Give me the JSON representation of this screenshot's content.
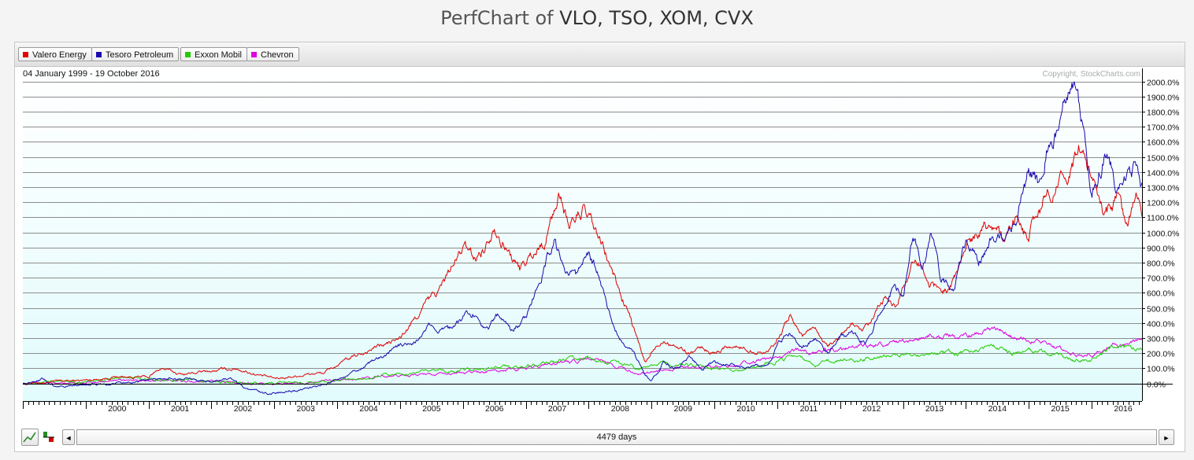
{
  "page": {
    "title_prefix": "PerfChart of",
    "title_tickers": "VLO, TSO, XOM, CVX"
  },
  "controls": {
    "days_label": "4479 days",
    "left_arrow": "◄",
    "right_arrow": "►"
  },
  "chart_data": {
    "type": "line",
    "date_range": "04 January 1999 - 19 October 2016",
    "copyright": "Copyright, StockCharts.com",
    "x_range": [
      1999.0,
      2016.8
    ],
    "ylim": [
      -100,
      2050
    ],
    "y_ticks": [
      0,
      100,
      200,
      300,
      400,
      500,
      600,
      700,
      800,
      900,
      1000,
      1100,
      1200,
      1300,
      1400,
      1500,
      1600,
      1700,
      1800,
      1900,
      2000
    ],
    "y_tick_labels": [
      "0.0%",
      "100.0%",
      "200.0%",
      "300.0%",
      "400.0%",
      "500.0%",
      "600.0%",
      "700.0%",
      "800.0%",
      "900.0%",
      "1000.0%",
      "1100.0%",
      "1200.0%",
      "1300.0%",
      "1400.0%",
      "1500.0%",
      "1600.0%",
      "1700.0%",
      "1800.0%",
      "1900.0%",
      "2000.0%"
    ],
    "x_ticks": [
      2000,
      2001,
      2002,
      2003,
      2004,
      2005,
      2006,
      2007,
      2008,
      2009,
      2010,
      2011,
      2012,
      2013,
      2014,
      2015,
      2016
    ],
    "x_tick_labels": [
      "2000",
      "2001",
      "2002",
      "2003",
      "2004",
      "2005",
      "2006",
      "2007",
      "2008",
      "2009",
      "2010",
      "2011",
      "2012",
      "2013",
      "2014",
      "2015",
      "2016"
    ],
    "grid": true,
    "legend_placement": "top-left",
    "series": [
      {
        "name": "Valero Energy",
        "color": "#e00000",
        "points": [
          [
            1999.0,
            0
          ],
          [
            1999.5,
            10
          ],
          [
            2000.0,
            20
          ],
          [
            2000.5,
            45
          ],
          [
            2001.0,
            40
          ],
          [
            2001.2,
            100
          ],
          [
            2001.5,
            60
          ],
          [
            2002.0,
            80
          ],
          [
            2002.4,
            100
          ],
          [
            2002.8,
            50
          ],
          [
            2003.0,
            30
          ],
          [
            2003.5,
            60
          ],
          [
            2003.8,
            70
          ],
          [
            2004.0,
            120
          ],
          [
            2004.3,
            180
          ],
          [
            2004.6,
            240
          ],
          [
            2004.8,
            260
          ],
          [
            2005.0,
            300
          ],
          [
            2005.2,
            400
          ],
          [
            2005.4,
            520
          ],
          [
            2005.6,
            600
          ],
          [
            2005.8,
            750
          ],
          [
            2006.0,
            900
          ],
          [
            2006.2,
            820
          ],
          [
            2006.4,
            950
          ],
          [
            2006.5,
            1080
          ],
          [
            2006.7,
            900
          ],
          [
            2006.9,
            750
          ],
          [
            2007.1,
            850
          ],
          [
            2007.3,
            950
          ],
          [
            2007.45,
            1150
          ],
          [
            2007.55,
            1250
          ],
          [
            2007.7,
            1050
          ],
          [
            2007.9,
            1150
          ],
          [
            2008.1,
            1000
          ],
          [
            2008.3,
            820
          ],
          [
            2008.5,
            600
          ],
          [
            2008.65,
            450
          ],
          [
            2008.8,
            250
          ],
          [
            2008.9,
            130
          ],
          [
            2009.0,
            200
          ],
          [
            2009.2,
            300
          ],
          [
            2009.4,
            250
          ],
          [
            2009.6,
            200
          ],
          [
            2009.8,
            230
          ],
          [
            2010.0,
            200
          ],
          [
            2010.2,
            250
          ],
          [
            2010.5,
            230
          ],
          [
            2010.8,
            200
          ],
          [
            2011.0,
            300
          ],
          [
            2011.2,
            440
          ],
          [
            2011.4,
            320
          ],
          [
            2011.6,
            380
          ],
          [
            2011.8,
            250
          ],
          [
            2012.0,
            300
          ],
          [
            2012.2,
            400
          ],
          [
            2012.35,
            320
          ],
          [
            2012.5,
            400
          ],
          [
            2012.7,
            550
          ],
          [
            2012.9,
            500
          ],
          [
            2013.0,
            650
          ],
          [
            2013.2,
            850
          ],
          [
            2013.4,
            700
          ],
          [
            2013.6,
            600
          ],
          [
            2013.8,
            680
          ],
          [
            2014.0,
            900
          ],
          [
            2014.3,
            1100
          ],
          [
            2014.5,
            1050
          ],
          [
            2014.6,
            900
          ],
          [
            2014.8,
            1100
          ],
          [
            2015.0,
            950
          ],
          [
            2015.1,
            1100
          ],
          [
            2015.3,
            1250
          ],
          [
            2015.5,
            1350
          ],
          [
            2015.6,
            1250
          ],
          [
            2015.8,
            1550
          ],
          [
            2016.0,
            1400
          ],
          [
            2016.2,
            1100
          ],
          [
            2016.4,
            1200
          ],
          [
            2016.55,
            1000
          ],
          [
            2016.7,
            1200
          ],
          [
            2016.8,
            1150
          ]
        ]
      },
      {
        "name": "Tesoro Petroleum",
        "color": "#1a0ab0",
        "points": [
          [
            1999.0,
            0
          ],
          [
            1999.3,
            30
          ],
          [
            1999.5,
            -20
          ],
          [
            1999.8,
            -10
          ],
          [
            2000.0,
            0
          ],
          [
            2000.3,
            -10
          ],
          [
            2000.7,
            10
          ],
          [
            2001.0,
            20
          ],
          [
            2001.3,
            40
          ],
          [
            2001.7,
            20
          ],
          [
            2002.0,
            10
          ],
          [
            2002.3,
            30
          ],
          [
            2002.5,
            -30
          ],
          [
            2002.8,
            -70
          ],
          [
            2003.0,
            -60
          ],
          [
            2003.3,
            -50
          ],
          [
            2003.7,
            -20
          ],
          [
            2004.0,
            20
          ],
          [
            2004.3,
            80
          ],
          [
            2004.6,
            150
          ],
          [
            2004.8,
            190
          ],
          [
            2005.0,
            250
          ],
          [
            2005.3,
            300
          ],
          [
            2005.5,
            400
          ],
          [
            2005.8,
            350
          ],
          [
            2006.0,
            420
          ],
          [
            2006.2,
            470
          ],
          [
            2006.4,
            380
          ],
          [
            2006.6,
            450
          ],
          [
            2006.75,
            350
          ],
          [
            2007.0,
            420
          ],
          [
            2007.2,
            650
          ],
          [
            2007.35,
            850
          ],
          [
            2007.45,
            950
          ],
          [
            2007.6,
            750
          ],
          [
            2007.8,
            700
          ],
          [
            2007.95,
            900
          ],
          [
            2008.1,
            780
          ],
          [
            2008.3,
            500
          ],
          [
            2008.5,
            300
          ],
          [
            2008.7,
            200
          ],
          [
            2008.9,
            50
          ],
          [
            2009.0,
            20
          ],
          [
            2009.2,
            150
          ],
          [
            2009.4,
            100
          ],
          [
            2009.6,
            180
          ],
          [
            2009.8,
            100
          ],
          [
            2010.0,
            150
          ],
          [
            2010.3,
            120
          ],
          [
            2010.6,
            100
          ],
          [
            2010.9,
            150
          ],
          [
            2011.0,
            250
          ],
          [
            2011.2,
            350
          ],
          [
            2011.4,
            250
          ],
          [
            2011.6,
            300
          ],
          [
            2011.8,
            200
          ],
          [
            2012.0,
            300
          ],
          [
            2012.2,
            350
          ],
          [
            2012.4,
            250
          ],
          [
            2012.6,
            450
          ],
          [
            2012.8,
            600
          ],
          [
            2013.0,
            600
          ],
          [
            2013.15,
            950
          ],
          [
            2013.3,
            800
          ],
          [
            2013.45,
            1000
          ],
          [
            2013.6,
            700
          ],
          [
            2013.8,
            600
          ],
          [
            2014.0,
            950
          ],
          [
            2014.2,
            780
          ],
          [
            2014.4,
            950
          ],
          [
            2014.6,
            950
          ],
          [
            2014.8,
            1100
          ],
          [
            2015.0,
            1400
          ],
          [
            2015.15,
            1300
          ],
          [
            2015.3,
            1600
          ],
          [
            2015.5,
            1700
          ],
          [
            2015.6,
            1900
          ],
          [
            2015.7,
            2000
          ],
          [
            2015.8,
            1800
          ],
          [
            2016.0,
            1300
          ],
          [
            2016.2,
            1550
          ],
          [
            2016.4,
            1300
          ],
          [
            2016.6,
            1350
          ],
          [
            2016.7,
            1450
          ],
          [
            2016.8,
            1350
          ]
        ]
      },
      {
        "name": "Exxon Mobil",
        "color": "#22cc00",
        "points": [
          [
            1999.0,
            0
          ],
          [
            1999.5,
            15
          ],
          [
            2000.0,
            10
          ],
          [
            2000.5,
            35
          ],
          [
            2001.0,
            30
          ],
          [
            2001.5,
            20
          ],
          [
            2002.0,
            15
          ],
          [
            2002.5,
            5
          ],
          [
            2003.0,
            0
          ],
          [
            2003.5,
            10
          ],
          [
            2004.0,
            20
          ],
          [
            2004.5,
            40
          ],
          [
            2005.0,
            60
          ],
          [
            2005.5,
            80
          ],
          [
            2006.0,
            90
          ],
          [
            2006.5,
            110
          ],
          [
            2007.0,
            120
          ],
          [
            2007.5,
            150
          ],
          [
            2008.0,
            160
          ],
          [
            2008.5,
            130
          ],
          [
            2008.8,
            100
          ],
          [
            2009.0,
            140
          ],
          [
            2009.5,
            120
          ],
          [
            2010.0,
            100
          ],
          [
            2010.3,
            80
          ],
          [
            2010.6,
            100
          ],
          [
            2011.0,
            150
          ],
          [
            2011.3,
            170
          ],
          [
            2011.6,
            130
          ],
          [
            2012.0,
            160
          ],
          [
            2012.5,
            170
          ],
          [
            2013.0,
            190
          ],
          [
            2013.5,
            200
          ],
          [
            2014.0,
            210
          ],
          [
            2014.4,
            240
          ],
          [
            2014.8,
            200
          ],
          [
            2015.0,
            210
          ],
          [
            2015.5,
            190
          ],
          [
            2015.8,
            150
          ],
          [
            2016.0,
            170
          ],
          [
            2016.3,
            230
          ],
          [
            2016.5,
            250
          ],
          [
            2016.8,
            220
          ]
        ]
      },
      {
        "name": "Chevron",
        "color": "#e000e0",
        "points": [
          [
            1999.0,
            0
          ],
          [
            1999.5,
            10
          ],
          [
            2000.0,
            5
          ],
          [
            2000.5,
            15
          ],
          [
            2001.0,
            20
          ],
          [
            2001.5,
            15
          ],
          [
            2002.0,
            10
          ],
          [
            2002.5,
            0
          ],
          [
            2003.0,
            -10
          ],
          [
            2003.5,
            0
          ],
          [
            2004.0,
            20
          ],
          [
            2004.5,
            35
          ],
          [
            2005.0,
            50
          ],
          [
            2005.5,
            60
          ],
          [
            2006.0,
            70
          ],
          [
            2006.5,
            80
          ],
          [
            2007.0,
            100
          ],
          [
            2007.5,
            130
          ],
          [
            2008.0,
            160
          ],
          [
            2008.5,
            110
          ],
          [
            2008.8,
            70
          ],
          [
            2009.0,
            80
          ],
          [
            2009.5,
            100
          ],
          [
            2010.0,
            110
          ],
          [
            2010.5,
            130
          ],
          [
            2011.0,
            180
          ],
          [
            2011.3,
            230
          ],
          [
            2011.6,
            200
          ],
          [
            2012.0,
            230
          ],
          [
            2012.5,
            260
          ],
          [
            2013.0,
            280
          ],
          [
            2013.5,
            320
          ],
          [
            2014.0,
            310
          ],
          [
            2014.4,
            350
          ],
          [
            2014.8,
            300
          ],
          [
            2015.0,
            290
          ],
          [
            2015.5,
            230
          ],
          [
            2015.8,
            180
          ],
          [
            2016.0,
            200
          ],
          [
            2016.5,
            270
          ],
          [
            2016.8,
            280
          ]
        ]
      }
    ]
  }
}
